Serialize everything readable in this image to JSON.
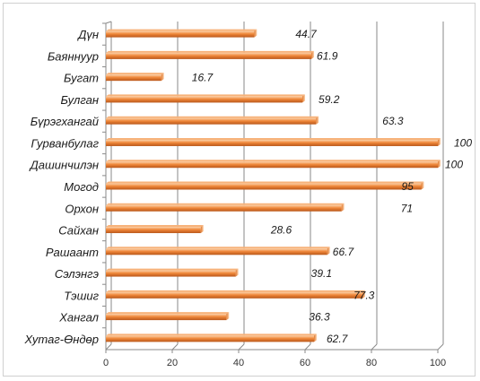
{
  "chart_data": {
    "type": "bar",
    "orientation": "horizontal",
    "categories": [
      "Дүн",
      "Баяннуур",
      "Бугат",
      "Булган",
      "Бүрэгхангай",
      "Гурванбулаг",
      "Дашинчилэн",
      "Могод",
      "Орхон",
      "Сайхан",
      "Рашаант",
      "Сэлэнгэ",
      "Тэшиг",
      "Хангал",
      "Хутаг-Өндөр"
    ],
    "values": [
      44.7,
      61.9,
      16.7,
      59.2,
      63.3,
      100,
      100,
      95,
      71,
      28.6,
      66.7,
      39.1,
      77.3,
      36.3,
      62.7
    ],
    "data_labels": [
      "44.7",
      "61.9",
      "16.7",
      "59.2",
      "63.3",
      "100",
      "100",
      "95",
      "71",
      "28.6",
      "66.7",
      "39.1",
      "77.3",
      "36.3",
      "62.7"
    ],
    "xlim": [
      0,
      100
    ],
    "x_ticks": [
      "0",
      "20",
      "40",
      "60",
      "80",
      "100"
    ],
    "grid": "vertical",
    "bar_color": "#f0883a",
    "title": "",
    "xlabel": "",
    "ylabel": ""
  }
}
